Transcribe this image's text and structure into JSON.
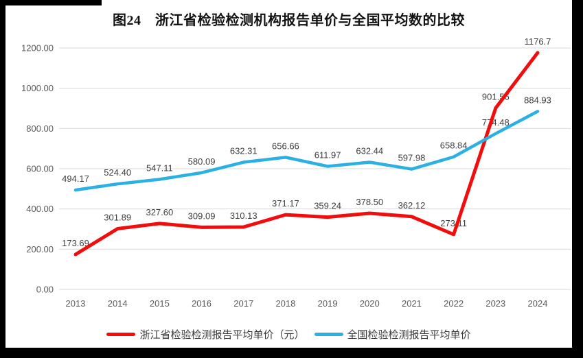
{
  "chart_data": {
    "type": "line",
    "title": "图24　浙江省检验检测机构报告单价与全国平均数的比较",
    "categories": [
      "2013",
      "2014",
      "2015",
      "2016",
      "2017",
      "2018",
      "2019",
      "2020",
      "2021",
      "2022",
      "2023",
      "2024"
    ],
    "series": [
      {
        "name": "浙江省检验检测报告平均单价（元）",
        "color": "#f20d0d",
        "values": [
          173.69,
          301.89,
          327.6,
          309.09,
          310.13,
          371.17,
          359.24,
          378.5,
          362.12,
          273.11,
          901.56,
          1176.7
        ],
        "labels": [
          "173.69",
          "301.89",
          "327.60",
          "309.09",
          "310.13",
          "371.17",
          "359.24",
          "378.50",
          "362.12",
          "273.11",
          "901.56",
          "1176.7"
        ]
      },
      {
        "name": "全国检验检测报告平均单价",
        "color": "#2ab0e3",
        "values": [
          494.17,
          524.4,
          547.11,
          580.09,
          632.31,
          656.66,
          611.97,
          632.44,
          597.98,
          658.84,
          774.48,
          884.93
        ],
        "labels": [
          "494.17",
          "524.40",
          "547.11",
          "580.09",
          "632.31",
          "656.66",
          "611.97",
          "632.44",
          "597.98",
          "658.84",
          "774.48",
          "884.93"
        ]
      }
    ],
    "ylim": [
      0,
      1200
    ],
    "yticks": [
      "0.00",
      "200.00",
      "400.00",
      "600.00",
      "800.00",
      "1000.00",
      "1200.00"
    ],
    "grid": true,
    "legend_position": "bottom",
    "colors": {
      "grid": "#d9d9d9",
      "tick_text": "#595959",
      "label_text": "#3d3d3d"
    }
  }
}
